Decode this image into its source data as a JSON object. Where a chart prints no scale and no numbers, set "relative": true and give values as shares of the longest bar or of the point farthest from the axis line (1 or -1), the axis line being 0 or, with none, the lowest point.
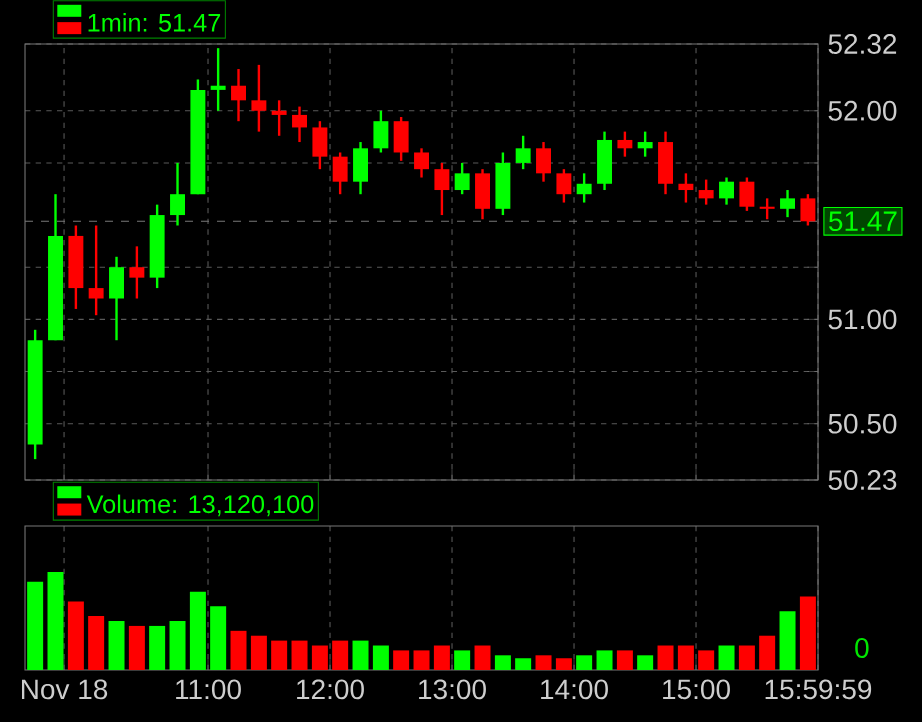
{
  "chart_data": [
    {
      "type": "candlestick",
      "legend": "top left",
      "grid": true,
      "tick_labels": "y",
      "x": [
        9.583,
        9.75,
        9.917,
        10.083,
        10.25,
        10.417,
        10.583,
        10.75,
        10.917,
        11.083,
        11.25,
        11.417,
        11.583,
        11.75,
        11.917,
        12.083,
        12.25,
        12.417,
        12.583,
        12.75,
        12.917,
        13.083,
        13.25,
        13.417,
        13.583,
        13.75,
        13.917,
        14.083,
        14.25,
        14.417,
        14.583,
        14.75,
        14.917,
        15.083,
        15.25,
        15.417,
        15.583,
        15.75,
        15.917
      ],
      "xlim": [
        9.5,
        16
      ],
      "xticks": [
        {
          "value": 9.82,
          "label": null
        },
        {
          "value": 11,
          "label": null
        },
        {
          "value": 12,
          "label": null
        },
        {
          "value": 13,
          "label": null
        },
        {
          "value": 14,
          "label": null
        },
        {
          "value": 15,
          "label": null
        },
        {
          "value": 15.9997,
          "label": null
        }
      ],
      "ylim": [
        50.23,
        52.32
      ],
      "yticks": [
        50.23,
        {
          "value": 50.5,
          "label": "50.50"
        },
        {
          "value": 50.75,
          "label": null
        },
        {
          "value": 51,
          "label": "51.00"
        },
        {
          "value": 51.25,
          "label": null
        },
        {
          "value": 51.75,
          "label": null
        },
        {
          "value": 52,
          "label": "52.00"
        },
        52.32
      ],
      "ref_lines": [
        {
          "axis": "y",
          "value": 51.47,
          "label": "51.47",
          "line_style": "dashed"
        }
      ],
      "series": [
        {
          "name": "1min: 51.47",
          "colors": [
            "#00ff00",
            "#00ff00",
            "#ff0000",
            "#ff0000",
            "#00ff00",
            "#ff0000",
            "#00ff00",
            "#00ff00",
            "#00ff00",
            "#00ff00",
            "#ff0000",
            "#ff0000",
            "#ff0000",
            "#ff0000",
            "#ff0000",
            "#ff0000",
            "#00ff00",
            "#00ff00",
            "#ff0000",
            "#ff0000",
            "#ff0000",
            "#00ff00",
            "#ff0000",
            "#00ff00",
            "#00ff00",
            "#ff0000",
            "#ff0000",
            "#00ff00",
            "#00ff00",
            "#ff0000",
            "#00ff00",
            "#ff0000",
            "#ff0000",
            "#ff0000",
            "#00ff00",
            "#ff0000",
            "#ff0000",
            "#00ff00",
            "#ff0000"
          ],
          "ohlc": [
            [
              50.4,
              50.95,
              50.33,
              50.9
            ],
            [
              50.9,
              51.6,
              50.9,
              51.4
            ],
            [
              51.4,
              51.45,
              51.05,
              51.15
            ],
            [
              51.15,
              51.45,
              51.02,
              51.1
            ],
            [
              51.1,
              51.3,
              50.9,
              51.25
            ],
            [
              51.25,
              51.35,
              51.1,
              51.2
            ],
            [
              51.2,
              51.55,
              51.15,
              51.5
            ],
            [
              51.5,
              51.75,
              51.45,
              51.6
            ],
            [
              51.6,
              52.15,
              51.6,
              52.1
            ],
            [
              52.1,
              52.3,
              52.0,
              52.12
            ],
            [
              52.12,
              52.2,
              51.95,
              52.05
            ],
            [
              52.05,
              52.22,
              51.9,
              52.0
            ],
            [
              52.0,
              52.05,
              51.88,
              51.98
            ],
            [
              51.98,
              52.02,
              51.85,
              51.92
            ],
            [
              51.92,
              51.95,
              51.72,
              51.78
            ],
            [
              51.78,
              51.8,
              51.6,
              51.66
            ],
            [
              51.66,
              51.85,
              51.6,
              51.82
            ],
            [
              51.82,
              52.0,
              51.8,
              51.95
            ],
            [
              51.95,
              51.97,
              51.76,
              51.8
            ],
            [
              51.8,
              51.82,
              51.68,
              51.72
            ],
            [
              51.72,
              51.75,
              51.5,
              51.62
            ],
            [
              51.62,
              51.75,
              51.6,
              51.7
            ],
            [
              51.7,
              51.72,
              51.48,
              51.53
            ],
            [
              51.53,
              51.8,
              51.5,
              51.75
            ],
            [
              51.75,
              51.88,
              51.72,
              51.82
            ],
            [
              51.82,
              51.85,
              51.66,
              51.7
            ],
            [
              51.7,
              51.72,
              51.56,
              51.6
            ],
            [
              51.6,
              51.7,
              51.56,
              51.65
            ],
            [
              51.65,
              51.9,
              51.62,
              51.86
            ],
            [
              51.86,
              51.9,
              51.78,
              51.82
            ],
            [
              51.82,
              51.9,
              51.78,
              51.85
            ],
            [
              51.85,
              51.9,
              51.6,
              51.65
            ],
            [
              51.65,
              51.7,
              51.56,
              51.62
            ],
            [
              51.62,
              51.67,
              51.55,
              51.58
            ],
            [
              51.58,
              51.68,
              51.55,
              51.66
            ],
            [
              51.66,
              51.68,
              51.52,
              51.54
            ],
            [
              51.54,
              51.58,
              51.48,
              51.53
            ],
            [
              51.53,
              51.62,
              51.49,
              51.58
            ],
            [
              51.58,
              51.6,
              51.45,
              51.47
            ]
          ]
        }
      ]
    },
    {
      "type": "bar",
      "relative": true,
      "legend": "top left",
      "grid": true,
      "tick_labels": "x",
      "x": [
        9.583,
        9.75,
        9.917,
        10.083,
        10.25,
        10.417,
        10.583,
        10.75,
        10.917,
        11.083,
        11.25,
        11.417,
        11.583,
        11.75,
        11.917,
        12.083,
        12.25,
        12.417,
        12.583,
        12.75,
        12.917,
        13.083,
        13.25,
        13.417,
        13.583,
        13.75,
        13.917,
        14.083,
        14.25,
        14.417,
        14.583,
        14.75,
        14.917,
        15.083,
        15.25,
        15.417,
        15.583,
        15.75,
        15.917
      ],
      "xlim": [
        9.5,
        16
      ],
      "xticks": [
        {
          "value": 9.82,
          "label": "Nov 18"
        },
        {
          "value": 11,
          "label": "11:00"
        },
        {
          "value": 12,
          "label": "12:00"
        },
        {
          "value": 13,
          "label": "13:00"
        },
        {
          "value": 14,
          "label": "14:00"
        },
        {
          "value": 15,
          "label": "15:00"
        },
        {
          "value": 15.9997,
          "label": "15:59:59"
        }
      ],
      "annotations": [
        "0"
      ],
      "series": [
        {
          "name": "Volume: 13,120,100",
          "colors": [
            "#00ff00",
            "#00ff00",
            "#ff0000",
            "#ff0000",
            "#00ff00",
            "#ff0000",
            "#00ff00",
            "#00ff00",
            "#00ff00",
            "#00ff00",
            "#ff0000",
            "#ff0000",
            "#ff0000",
            "#ff0000",
            "#ff0000",
            "#ff0000",
            "#00ff00",
            "#00ff00",
            "#ff0000",
            "#ff0000",
            "#ff0000",
            "#00ff00",
            "#ff0000",
            "#00ff00",
            "#00ff00",
            "#ff0000",
            "#ff0000",
            "#00ff00",
            "#00ff00",
            "#ff0000",
            "#00ff00",
            "#ff0000",
            "#ff0000",
            "#ff0000",
            "#00ff00",
            "#ff0000",
            "#ff0000",
            "#00ff00",
            "#ff0000"
          ],
          "values": [
            0.9,
            1.0,
            0.7,
            0.55,
            0.5,
            0.45,
            0.45,
            0.5,
            0.8,
            0.65,
            0.4,
            0.35,
            0.3,
            0.3,
            0.25,
            0.3,
            0.3,
            0.25,
            0.2,
            0.2,
            0.25,
            0.2,
            0.25,
            0.15,
            0.12,
            0.15,
            0.12,
            0.15,
            0.2,
            0.2,
            0.15,
            0.25,
            0.25,
            0.2,
            0.25,
            0.25,
            0.35,
            0.6,
            0.75
          ]
        }
      ]
    }
  ]
}
